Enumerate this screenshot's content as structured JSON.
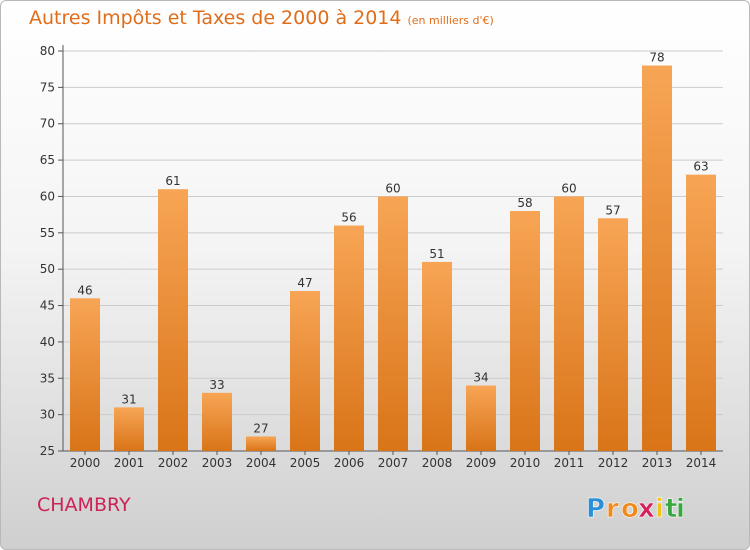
{
  "chart_data": {
    "type": "bar",
    "title": "Autres Impôts et Taxes de 2000 à 2014",
    "subtitle": "(en milliers d'€)",
    "xlabel": "",
    "ylabel": "",
    "categories": [
      "2000",
      "2001",
      "2002",
      "2003",
      "2004",
      "2005",
      "2006",
      "2007",
      "2008",
      "2009",
      "2010",
      "2011",
      "2012",
      "2013",
      "2014"
    ],
    "values": [
      46,
      31,
      61,
      33,
      27,
      47,
      56,
      60,
      51,
      34,
      58,
      60,
      57,
      78,
      63
    ],
    "ylim": [
      25,
      80
    ],
    "yticks": [
      25,
      30,
      35,
      40,
      45,
      50,
      55,
      60,
      65,
      70,
      75,
      80
    ],
    "grid": "horizontal",
    "bar_color_top": "#f7a555",
    "bar_color_bottom": "#d97418",
    "data_labels": true
  },
  "commune": "CHAMBRY",
  "brand": {
    "name": "Proxiti",
    "letters": [
      "P",
      "r",
      "o",
      "x",
      "i",
      "t",
      "i"
    ],
    "letter_colors": [
      "#2a8fd6",
      "#f08a1c",
      "#f08a1c",
      "#d6205a",
      "#f2c21a",
      "#3aa640",
      "#3aa640"
    ]
  },
  "colors": {
    "title": "#e06d1a",
    "commune": "#cc2255",
    "grid": "#cccccc",
    "axis_text": "#333333"
  }
}
